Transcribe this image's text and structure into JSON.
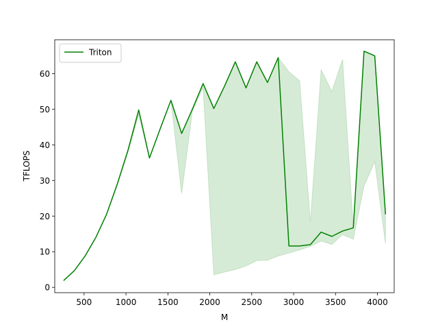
{
  "chart_data": {
    "type": "line",
    "xlabel": "M",
    "ylabel": "TFLOPS",
    "xlim": [
      150,
      4200
    ],
    "ylim": [
      -1.5,
      69.5
    ],
    "xticks": [
      500,
      1000,
      1500,
      2000,
      2500,
      3000,
      3500,
      4000
    ],
    "yticks": [
      0,
      10,
      20,
      30,
      40,
      50,
      60
    ],
    "grid": false,
    "legend": "top-left",
    "series": [
      {
        "name": "Triton",
        "color": "#008000",
        "x": [
          256,
          384,
          512,
          640,
          768,
          896,
          1024,
          1152,
          1280,
          1408,
          1536,
          1664,
          1792,
          1920,
          2048,
          2176,
          2304,
          2432,
          2560,
          2688,
          2816,
          2944,
          3072,
          3200,
          3328,
          3456,
          3584,
          3712,
          3840,
          3968,
          4096
        ],
        "y": [
          1.9,
          4.7,
          8.8,
          14.0,
          20.5,
          29.0,
          38.5,
          49.8,
          36.3,
          44.5,
          52.5,
          43.2,
          50.0,
          57.2,
          50.2,
          56.5,
          63.3,
          56.0,
          63.3,
          57.5,
          64.5,
          11.6,
          11.6,
          12.0,
          15.5,
          14.3,
          15.8,
          16.7,
          66.3,
          65.0,
          20.5
        ],
        "band_lower": [
          1.8,
          4.6,
          8.7,
          13.9,
          20.3,
          28.6,
          37.9,
          48.4,
          36.2,
          44.5,
          52.4,
          26.3,
          49.5,
          56.0,
          3.5,
          4.3,
          5.0,
          6.0,
          7.5,
          7.6,
          8.8,
          9.6,
          10.5,
          11.5,
          13.0,
          12.0,
          14.8,
          13.5,
          28.4,
          35.3,
          12.2
        ],
        "band_upper": [
          1.9,
          4.7,
          8.8,
          14.0,
          20.5,
          29.0,
          38.5,
          49.8,
          36.3,
          44.5,
          52.5,
          43.2,
          50.0,
          57.2,
          50.2,
          56.5,
          63.3,
          56.0,
          63.3,
          57.5,
          64.5,
          60.5,
          58.0,
          18.3,
          61.1,
          55.0,
          64.0,
          16.7,
          66.3,
          65.0,
          20.5
        ]
      }
    ]
  }
}
